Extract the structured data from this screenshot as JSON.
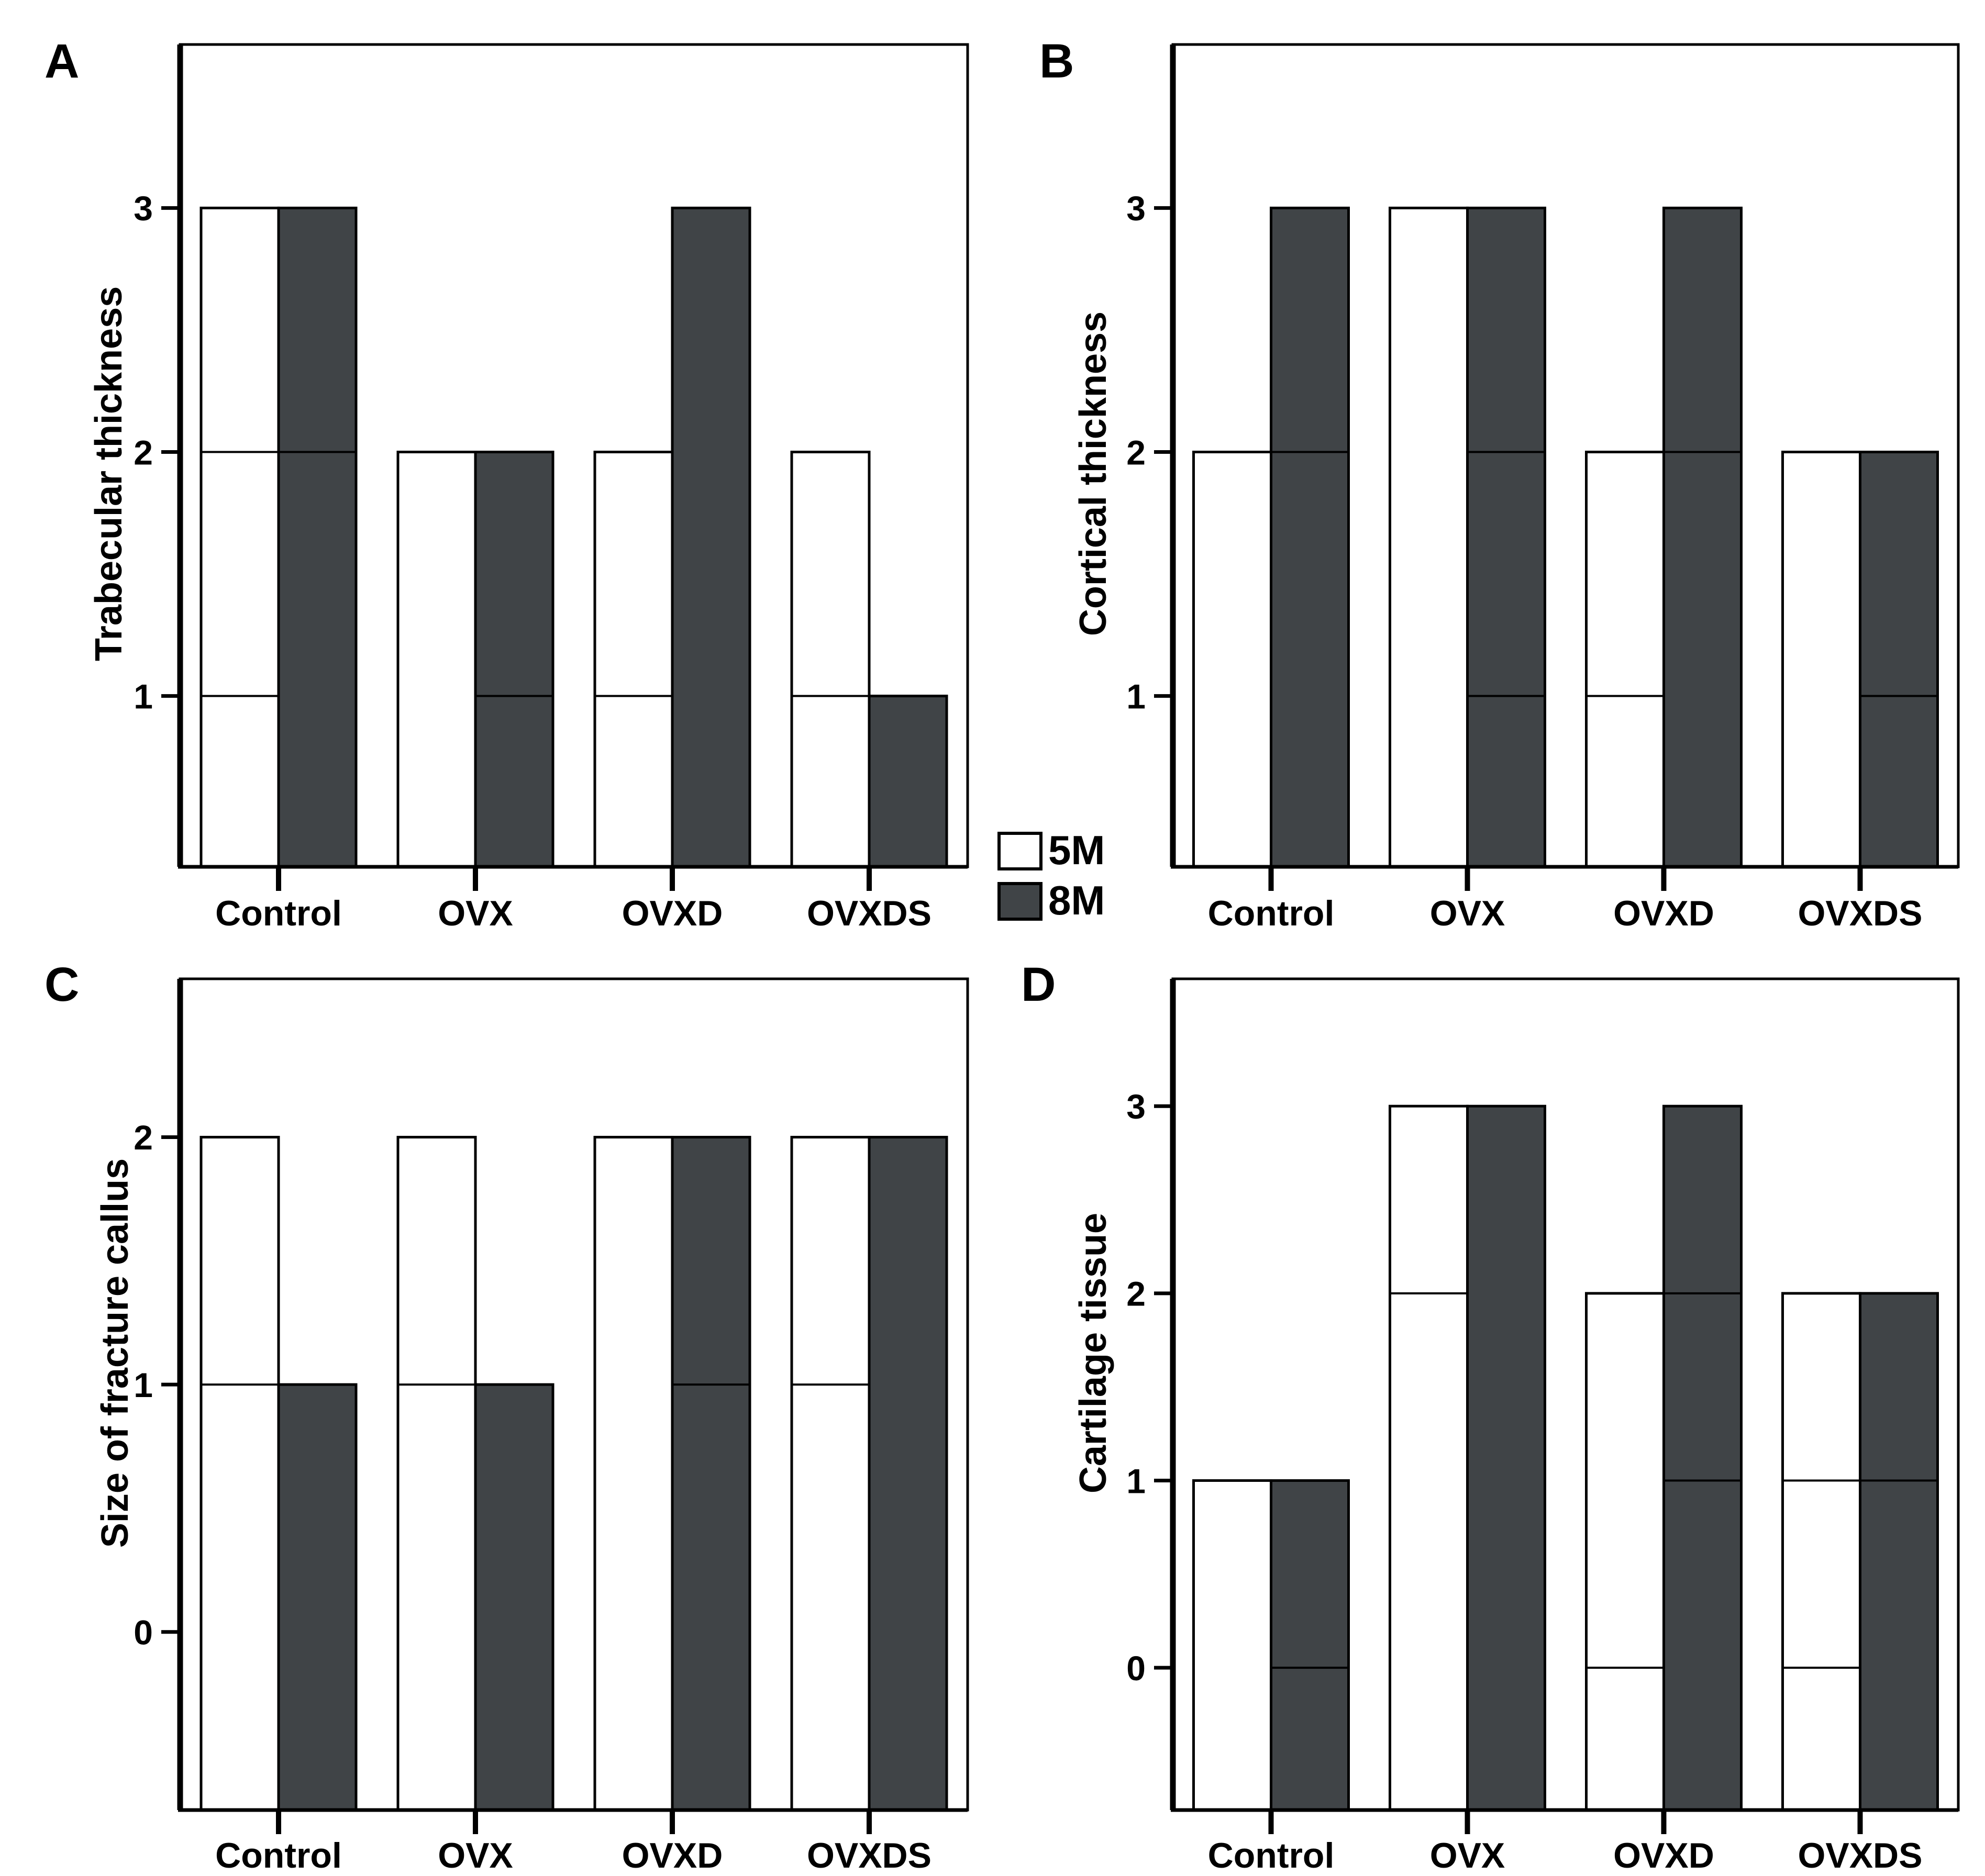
{
  "figure": {
    "background": "#ffffff",
    "outline_color": "#000000",
    "categories": [
      "Control",
      "OVX",
      "OVXD",
      "OVXDS"
    ],
    "legend": {
      "position": "center-between-panels",
      "items": [
        {
          "label": "5M",
          "color": "#ffffff"
        },
        {
          "label": "8M",
          "color": "#404447"
        }
      ]
    }
  },
  "chart_data": [
    {
      "type": "bar",
      "panel_letter": "A",
      "title": "",
      "xlabel": "",
      "ylabel": "Trabecular thickness",
      "categories": [
        "Control",
        "OVX",
        "OVXD",
        "OVXDS"
      ],
      "yticks": [
        1,
        2,
        3
      ],
      "ylim": [
        0.3,
        3.67
      ],
      "grid": false,
      "series": [
        {
          "name": "5M",
          "color": "#ffffff",
          "values": [
            3,
            2,
            2,
            2
          ],
          "segment_lines": [
            [
              1,
              2
            ],
            [],
            [
              1
            ],
            [
              1
            ]
          ]
        },
        {
          "name": "8M",
          "color": "#404447",
          "values": [
            3,
            2,
            3,
            1
          ],
          "segment_lines": [
            [
              2
            ],
            [
              1
            ],
            [],
            []
          ]
        }
      ]
    },
    {
      "type": "bar",
      "panel_letter": "B",
      "title": "",
      "xlabel": "",
      "ylabel": "Cortical thickness",
      "categories": [
        "Control",
        "OVX",
        "OVXD",
        "OVXDS"
      ],
      "yticks": [
        1,
        2,
        3
      ],
      "ylim": [
        0.3,
        3.67
      ],
      "grid": false,
      "series": [
        {
          "name": "5M",
          "color": "#ffffff",
          "values": [
            2,
            3,
            2,
            2
          ],
          "segment_lines": [
            [],
            [],
            [
              1
            ],
            []
          ]
        },
        {
          "name": "8M",
          "color": "#404447",
          "values": [
            3,
            3,
            3,
            2
          ],
          "segment_lines": [
            [
              2
            ],
            [
              1,
              2
            ],
            [
              2
            ],
            [
              1
            ]
          ]
        }
      ]
    },
    {
      "type": "bar",
      "panel_letter": "C",
      "title": "",
      "xlabel": "",
      "ylabel": "Size of fracture callus",
      "categories": [
        "Control",
        "OVX",
        "OVXD",
        "OVXDS"
      ],
      "yticks": [
        0,
        1,
        2
      ],
      "ylim": [
        -0.72,
        2.64
      ],
      "grid": false,
      "series": [
        {
          "name": "5M",
          "color": "#ffffff",
          "values": [
            2,
            2,
            2,
            2
          ],
          "segment_lines": [
            [
              1
            ],
            [
              1
            ],
            [],
            [
              1
            ]
          ]
        },
        {
          "name": "8M",
          "color": "#404447",
          "values": [
            1,
            1,
            2,
            2
          ],
          "segment_lines": [
            [],
            [],
            [
              1
            ],
            []
          ]
        }
      ]
    },
    {
      "type": "bar",
      "panel_letter": "D",
      "title": "",
      "xlabel": "",
      "ylabel": "Cartilage tissue",
      "categories": [
        "Control",
        "OVX",
        "OVXD",
        "OVXDS"
      ],
      "yticks": [
        0,
        1,
        2,
        3
      ],
      "ylim": [
        -0.76,
        3.68
      ],
      "grid": false,
      "series": [
        {
          "name": "5M",
          "color": "#ffffff",
          "values": [
            1,
            3,
            2,
            2
          ],
          "segment_lines": [
            [],
            [
              2
            ],
            [
              0
            ],
            [
              0,
              1
            ]
          ]
        },
        {
          "name": "8M",
          "color": "#404447",
          "values": [
            1,
            3,
            3,
            2
          ],
          "segment_lines": [
            [
              0
            ],
            [],
            [
              1,
              2
            ],
            [
              1
            ]
          ]
        }
      ]
    }
  ]
}
